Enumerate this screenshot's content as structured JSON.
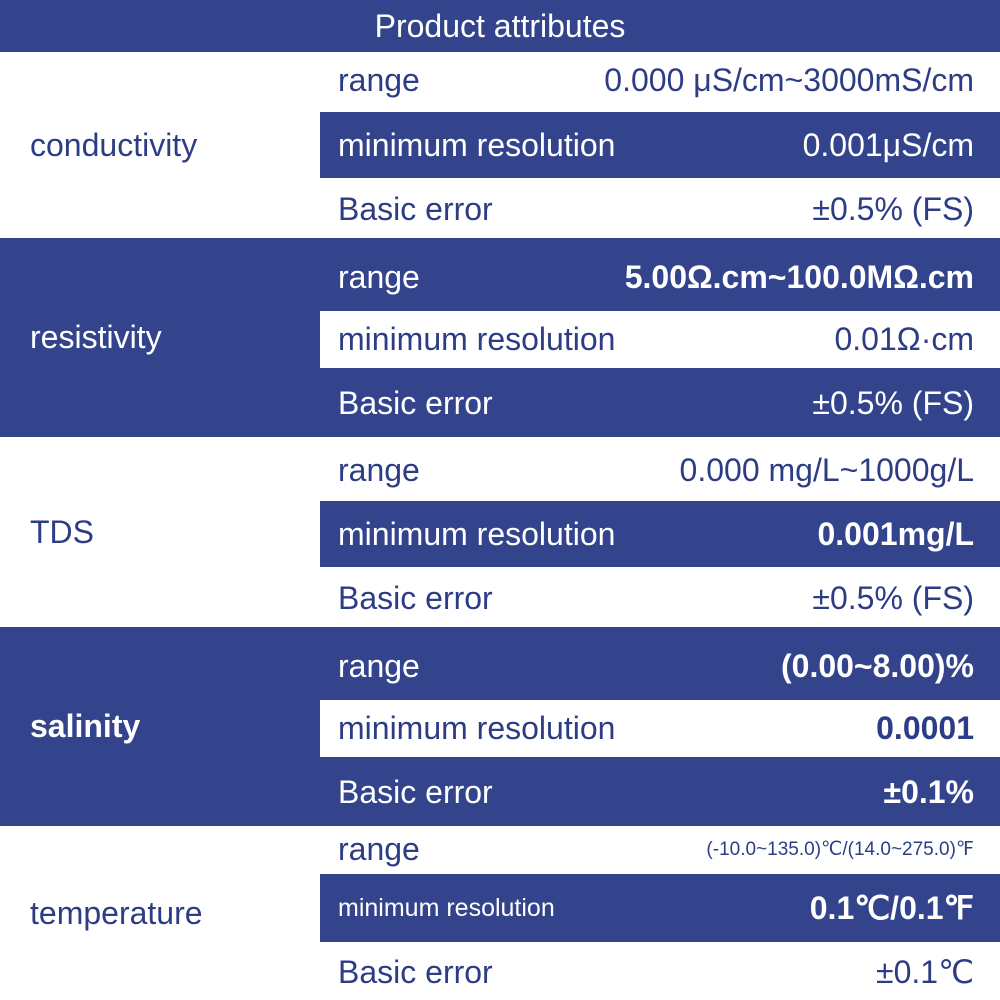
{
  "header": {
    "title": "Product attributes"
  },
  "conductivity": {
    "label": "conductivity",
    "range_label": "range",
    "range_value": "0.000 μS/cm~3000mS/cm",
    "resolution_label": "minimum resolution",
    "resolution_value": "0.001μS/cm",
    "error_label": "Basic error",
    "error_value": "±0.5% (FS)"
  },
  "resistivity": {
    "label": "resistivity",
    "range_label": "range",
    "range_value": "5.00Ω.cm~100.0MΩ.cm",
    "resolution_label": "minimum resolution",
    "resolution_value": "0.01Ω·cm",
    "error_label": "Basic error",
    "error_value": "±0.5% (FS)"
  },
  "tds": {
    "label": "TDS",
    "range_label": "range",
    "range_value": "0.000 mg/L~1000g/L",
    "resolution_label": "minimum resolution",
    "resolution_value": "0.001mg/L",
    "error_label": "Basic error",
    "error_value": "±0.5% (FS)"
  },
  "salinity": {
    "label": "salinity",
    "range_label": "range",
    "range_value": "(0.00~8.00)%",
    "resolution_label": "minimum resolution",
    "resolution_value": "0.0001",
    "error_label": "Basic error",
    "error_value": "±0.1%"
  },
  "temperature": {
    "label": "temperature",
    "range_label": "range",
    "range_value": "(-10.0~135.0)℃/(14.0~275.0)℉",
    "resolution_label": "minimum resolution",
    "resolution_value": "0.1℃/0.1℉",
    "error_label": "Basic error",
    "error_value": "±0.1℃"
  },
  "colors": {
    "navy": "#33448d",
    "text_dark": "#2d3d85",
    "white": "#ffffff"
  }
}
